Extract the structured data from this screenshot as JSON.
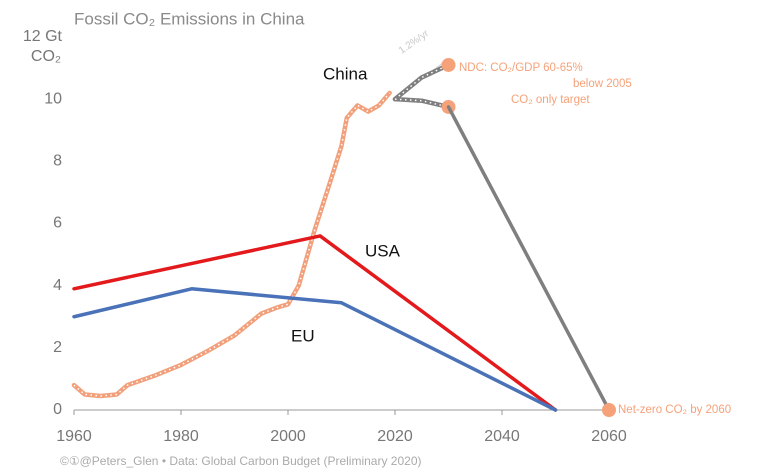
{
  "chart_data": {
    "type": "line",
    "title": "Fossil CO₂ Emissions in China",
    "ylabel": "CO₂",
    "xlim": [
      1960,
      2060
    ],
    "xticks": [
      1960,
      1980,
      2000,
      2020,
      2040,
      2060
    ],
    "ylim": [
      0,
      12
    ],
    "yticks": [
      0,
      2,
      4,
      6,
      8,
      10,
      {
        "value": 12,
        "label": "12 Gt"
      }
    ],
    "grid": false,
    "series": [
      {
        "name": "China",
        "color": "#f2a07b",
        "style": "dotted",
        "x": [
          1960,
          1962,
          1965,
          1968,
          1970,
          1975,
          1980,
          1985,
          1990,
          1995,
          1998,
          2000,
          2002,
          2005,
          2008,
          2010,
          2011,
          2013,
          2015,
          2017,
          2019
        ],
        "values": [
          0.8,
          0.5,
          0.45,
          0.5,
          0.8,
          1.1,
          1.45,
          1.9,
          2.4,
          3.1,
          3.3,
          3.4,
          4.0,
          5.8,
          7.4,
          8.5,
          9.4,
          9.8,
          9.6,
          9.8,
          10.2
        ]
      },
      {
        "name": "USA",
        "color": "#e3191c",
        "style": "solid",
        "x": [
          1960,
          2006,
          2050
        ],
        "values": [
          3.9,
          5.6,
          0
        ]
      },
      {
        "name": "EU",
        "color": "#4a72b8",
        "style": "solid",
        "x": [
          1960,
          1982,
          2010,
          2050
        ],
        "values": [
          3.0,
          3.9,
          3.45,
          0
        ]
      },
      {
        "color": "#d4d4d4",
        "style": "thin",
        "x": [
          2020,
          2030
        ],
        "values": [
          10.0,
          11.3
        ]
      },
      {
        "color": "#7f7f7f",
        "style": "dotted",
        "end_marker": true,
        "x": [
          2020,
          2025,
          2030
        ],
        "values": [
          10.0,
          10.7,
          11.1
        ]
      },
      {
        "color": "#7f7f7f",
        "style": "dotted",
        "end_marker": true,
        "x": [
          2020,
          2025,
          2030
        ],
        "values": [
          10.0,
          9.95,
          9.75
        ]
      },
      {
        "color": "#7f7f7f",
        "style": "solid",
        "end_marker": true,
        "x": [
          2030,
          2060
        ],
        "values": [
          9.75,
          0
        ]
      }
    ],
    "marker_color": "#f5a27a",
    "annotations": [
      "1.2%/yr",
      "NDC: CO₂/GDP 60-65%",
      "below 2005",
      "CO₂ only target",
      "Net-zero CO₂ by 2060"
    ],
    "source": "©①@Peters_Glen  •  Data: Global Carbon Budget (Preliminary 2020)"
  }
}
